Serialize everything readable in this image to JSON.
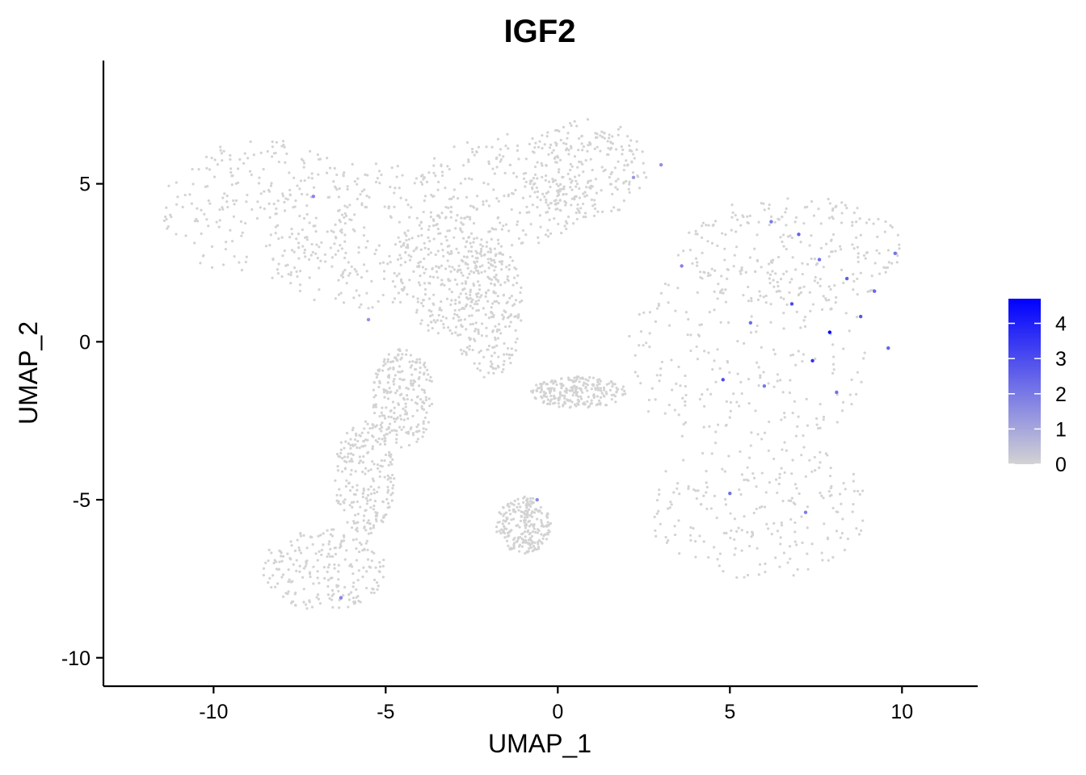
{
  "chart_data": {
    "type": "scatter",
    "title": "IGF2",
    "xlabel": "UMAP_1",
    "ylabel": "UMAP_2",
    "xlim": [
      -13.2,
      12.2
    ],
    "ylim": [
      -10.9,
      8.9
    ],
    "x_ticks": [
      -10,
      -5,
      0,
      5,
      10
    ],
    "x_tick_labels": [
      "-10",
      "-5",
      "0",
      "5",
      "10"
    ],
    "y_ticks": [
      -10,
      -5,
      0,
      5
    ],
    "y_tick_labels": [
      "-10",
      "-5",
      "0",
      "5"
    ],
    "grid": false,
    "point_color_low": "#d3d3d3",
    "point_color_high": "#0000ff",
    "point_count_background": 3200,
    "colorbar": {
      "title": "",
      "min": 0,
      "max": 4.7,
      "ticks": [
        0,
        1,
        2,
        3,
        4
      ],
      "tick_labels": [
        "0",
        "1",
        "2",
        "3",
        "4"
      ],
      "placement": "right"
    },
    "series": [
      {
        "values": [
          {
            "x": 6.2,
            "y": 3.8,
            "expr": 2.0
          },
          {
            "x": 7.0,
            "y": 3.4,
            "expr": 2.5
          },
          {
            "x": 7.6,
            "y": 2.6,
            "expr": 2.2
          },
          {
            "x": 8.4,
            "y": 2.0,
            "expr": 2.6
          },
          {
            "x": 8.8,
            "y": 0.8,
            "expr": 2.8
          },
          {
            "x": 9.2,
            "y": 1.6,
            "expr": 2.4
          },
          {
            "x": 6.8,
            "y": 1.2,
            "expr": 3.1
          },
          {
            "x": 5.6,
            "y": 0.6,
            "expr": 2.3
          },
          {
            "x": 4.8,
            "y": -1.2,
            "expr": 3.0
          },
          {
            "x": 9.6,
            "y": -0.2,
            "expr": 2.5
          },
          {
            "x": 7.4,
            "y": -0.6,
            "expr": 3.6
          },
          {
            "x": 6.0,
            "y": -1.4,
            "expr": 2.0
          },
          {
            "x": 8.1,
            "y": -1.6,
            "expr": 2.2
          },
          {
            "x": 3.6,
            "y": 2.4,
            "expr": 1.8
          },
          {
            "x": 9.8,
            "y": 2.8,
            "expr": 2.1
          },
          {
            "x": 5.0,
            "y": -4.8,
            "expr": 2.2
          },
          {
            "x": 7.2,
            "y": -5.4,
            "expr": 1.9
          },
          {
            "x": -0.6,
            "y": -5.0,
            "expr": 1.6
          },
          {
            "x": -5.5,
            "y": 0.7,
            "expr": 1.4
          },
          {
            "x": -7.1,
            "y": 4.6,
            "expr": 1.7
          },
          {
            "x": -6.3,
            "y": -8.1,
            "expr": 1.8
          },
          {
            "x": 2.2,
            "y": 5.2,
            "expr": 1.3
          },
          {
            "x": 3.0,
            "y": 5.6,
            "expr": 1.5
          },
          {
            "x": 7.9,
            "y": 0.3,
            "expr": 4.5
          }
        ]
      }
    ]
  }
}
